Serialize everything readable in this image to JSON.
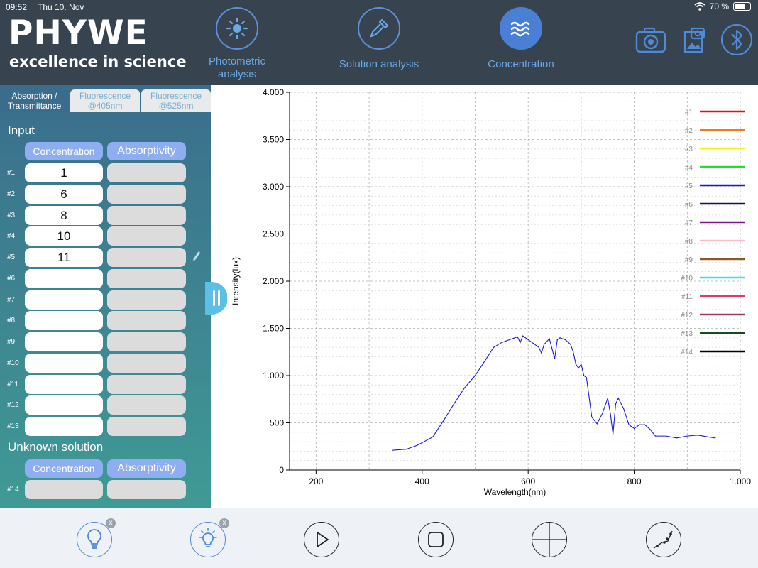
{
  "status_bar": {
    "time": "09:52",
    "date": "Thu 10. Nov",
    "battery": "70 %",
    "battery_level": 0.7
  },
  "brand": {
    "name": "PHYWE",
    "tagline": "excellence in science"
  },
  "modes": [
    {
      "label": "Photometric analysis",
      "icon": "sun-icon",
      "active": false
    },
    {
      "label": "Solution analysis",
      "icon": "pipette-icon",
      "active": false
    },
    {
      "label": "Concentration",
      "icon": "waves-icon",
      "active": true
    }
  ],
  "top_actions": [
    "camera-icon",
    "photo-gallery-icon",
    "bluetooth-icon"
  ],
  "tabs": [
    {
      "label": "Absorption / Transmittance",
      "active": true
    },
    {
      "label": "Fluorescence @405nm",
      "active": false
    },
    {
      "label": "Fluorescence @525nm",
      "active": false
    }
  ],
  "input": {
    "title": "Input",
    "columns": [
      "Concentration",
      "Absorptivity"
    ],
    "rows": [
      {
        "label": "#1",
        "concentration": "1",
        "absorptivity": ""
      },
      {
        "label": "#2",
        "concentration": "6",
        "absorptivity": ""
      },
      {
        "label": "#3",
        "concentration": "8",
        "absorptivity": ""
      },
      {
        "label": "#4",
        "concentration": "10",
        "absorptivity": ""
      },
      {
        "label": "#5",
        "concentration": "11",
        "absorptivity": ""
      },
      {
        "label": "#6",
        "concentration": "",
        "absorptivity": ""
      },
      {
        "label": "#7",
        "concentration": "",
        "absorptivity": ""
      },
      {
        "label": "#8",
        "concentration": "",
        "absorptivity": ""
      },
      {
        "label": "#9",
        "concentration": "",
        "absorptivity": ""
      },
      {
        "label": "#10",
        "concentration": "",
        "absorptivity": ""
      },
      {
        "label": "#11",
        "concentration": "",
        "absorptivity": ""
      },
      {
        "label": "#12",
        "concentration": "",
        "absorptivity": ""
      },
      {
        "label": "#13",
        "concentration": "",
        "absorptivity": ""
      }
    ]
  },
  "unknown": {
    "title": "Unknown solution",
    "columns": [
      "Concentration",
      "Absorptivity"
    ],
    "row": {
      "label": "#14",
      "concentration": "",
      "absorptivity": ""
    }
  },
  "chart_data": {
    "type": "line",
    "xlabel": "Wavelength(nm)",
    "ylabel": "Intensity(lux)",
    "xlim": [
      150,
      1000
    ],
    "ylim": [
      0,
      4000
    ],
    "xticks": [
      {
        "v": 200,
        "label": "200"
      },
      {
        "v": 400,
        "label": "400"
      },
      {
        "v": 600,
        "label": "600"
      },
      {
        "v": 800,
        "label": "800"
      },
      {
        "v": 1000,
        "label": "1.000"
      }
    ],
    "yticks": [
      {
        "v": 0,
        "label": "0"
      },
      {
        "v": 500,
        "label": "500"
      },
      {
        "v": 1000,
        "label": "1.000"
      },
      {
        "v": 1500,
        "label": "1.500"
      },
      {
        "v": 2000,
        "label": "2.000"
      },
      {
        "v": 2500,
        "label": "2.500"
      },
      {
        "v": 3000,
        "label": "3.000"
      },
      {
        "v": 3500,
        "label": "3.500"
      },
      {
        "v": 4000,
        "label": "4.000"
      }
    ],
    "grid": true,
    "legend_position": "top-right",
    "legend": [
      {
        "name": "#1",
        "color": "#e01010"
      },
      {
        "name": "#2",
        "color": "#f07a1a"
      },
      {
        "name": "#3",
        "color": "#f2f21a"
      },
      {
        "name": "#4",
        "color": "#22e022"
      },
      {
        "name": "#5",
        "color": "#1a1ad0"
      },
      {
        "name": "#6",
        "color": "#1a1050"
      },
      {
        "name": "#7",
        "color": "#7a1a8a"
      },
      {
        "name": "#8",
        "color": "#f7c0c8"
      },
      {
        "name": "#9",
        "color": "#8a5a20"
      },
      {
        "name": "#10",
        "color": "#40e0e0"
      },
      {
        "name": "#11",
        "color": "#e03a6a"
      },
      {
        "name": "#12",
        "color": "#9a3a6a"
      },
      {
        "name": "#13",
        "color": "#1a4a1a"
      },
      {
        "name": "#14",
        "color": "#000000"
      }
    ],
    "series": [
      {
        "color": "#1a1ad0",
        "x": [
          345,
          370,
          390,
          400,
          420,
          440,
          460,
          480,
          500,
          520,
          535,
          550,
          560,
          570,
          580,
          585,
          590,
          600,
          610,
          620,
          625,
          630,
          640,
          650,
          655,
          660,
          670,
          680,
          685,
          690,
          695,
          700,
          705,
          710,
          720,
          730,
          740,
          750,
          755,
          760,
          765,
          770,
          780,
          790,
          800,
          810,
          820,
          830,
          840,
          860,
          880,
          900,
          920,
          940,
          953
        ],
        "y": [
          210,
          220,
          260,
          290,
          350,
          520,
          700,
          870,
          1000,
          1170,
          1300,
          1350,
          1370,
          1390,
          1410,
          1350,
          1420,
          1380,
          1340,
          1300,
          1240,
          1330,
          1390,
          1180,
          1380,
          1400,
          1380,
          1330,
          1250,
          1120,
          1080,
          1120,
          1000,
          980,
          560,
          490,
          600,
          760,
          600,
          380,
          700,
          760,
          650,
          480,
          440,
          480,
          480,
          430,
          360,
          360,
          340,
          360,
          370,
          350,
          340
        ]
      }
    ]
  },
  "toolbar": [
    {
      "name": "light-source-icon",
      "badge": "x"
    },
    {
      "name": "light-calibrate-icon",
      "badge": "x"
    },
    {
      "name": "play-icon"
    },
    {
      "name": "stop-icon"
    },
    {
      "name": "crosshair-icon"
    },
    {
      "name": "curve-fit-icon"
    }
  ]
}
